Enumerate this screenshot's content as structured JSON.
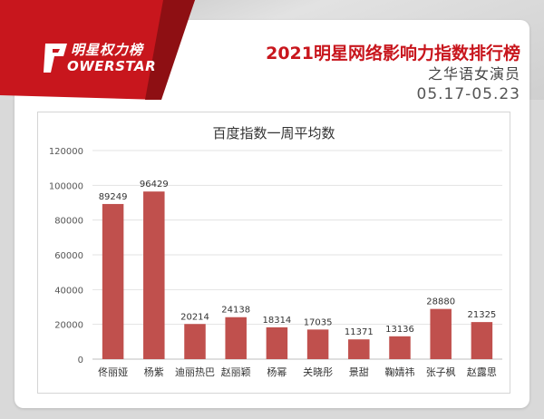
{
  "brand": {
    "logo_line1": "明星权力榜",
    "logo_line2": "OWERSTAR"
  },
  "header": {
    "title": "2021明星网络影响力指数排行榜",
    "subtitle": "之华语女演员",
    "date_range": "05.17-05.23"
  },
  "colors": {
    "accent": "#c8161d",
    "bar": "#c0504d"
  },
  "chart_data": {
    "type": "bar",
    "title": "百度指数一周平均数",
    "categories": [
      "佟丽娅",
      "杨紫",
      "迪丽热巴",
      "赵丽颖",
      "杨幂",
      "关晓彤",
      "景甜",
      "鞠婧祎",
      "张子枫",
      "赵露思"
    ],
    "values": [
      89249,
      96429,
      20214,
      24138,
      18314,
      17035,
      11371,
      13136,
      28880,
      21325
    ],
    "ylim": [
      0,
      120000
    ],
    "yticks": [
      "0",
      "20000",
      "40000",
      "60000",
      "80000",
      "100000",
      "120000"
    ],
    "grid": true
  }
}
